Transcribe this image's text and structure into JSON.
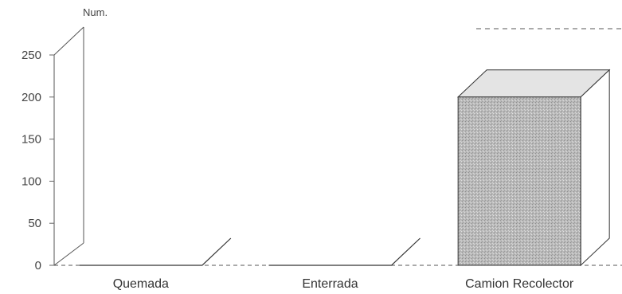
{
  "chart_data": {
    "type": "bar",
    "style": "3d",
    "ylabel": "Num.",
    "ylim": [
      0,
      250
    ],
    "yticks": [
      "0",
      "50",
      "100",
      "150",
      "200",
      "250"
    ],
    "categories": [
      "Quemada",
      "Enterrada",
      "Camion Recolector"
    ],
    "values": [
      0,
      0,
      200
    ],
    "bar_color": "#b5b5b5",
    "grid": false
  }
}
